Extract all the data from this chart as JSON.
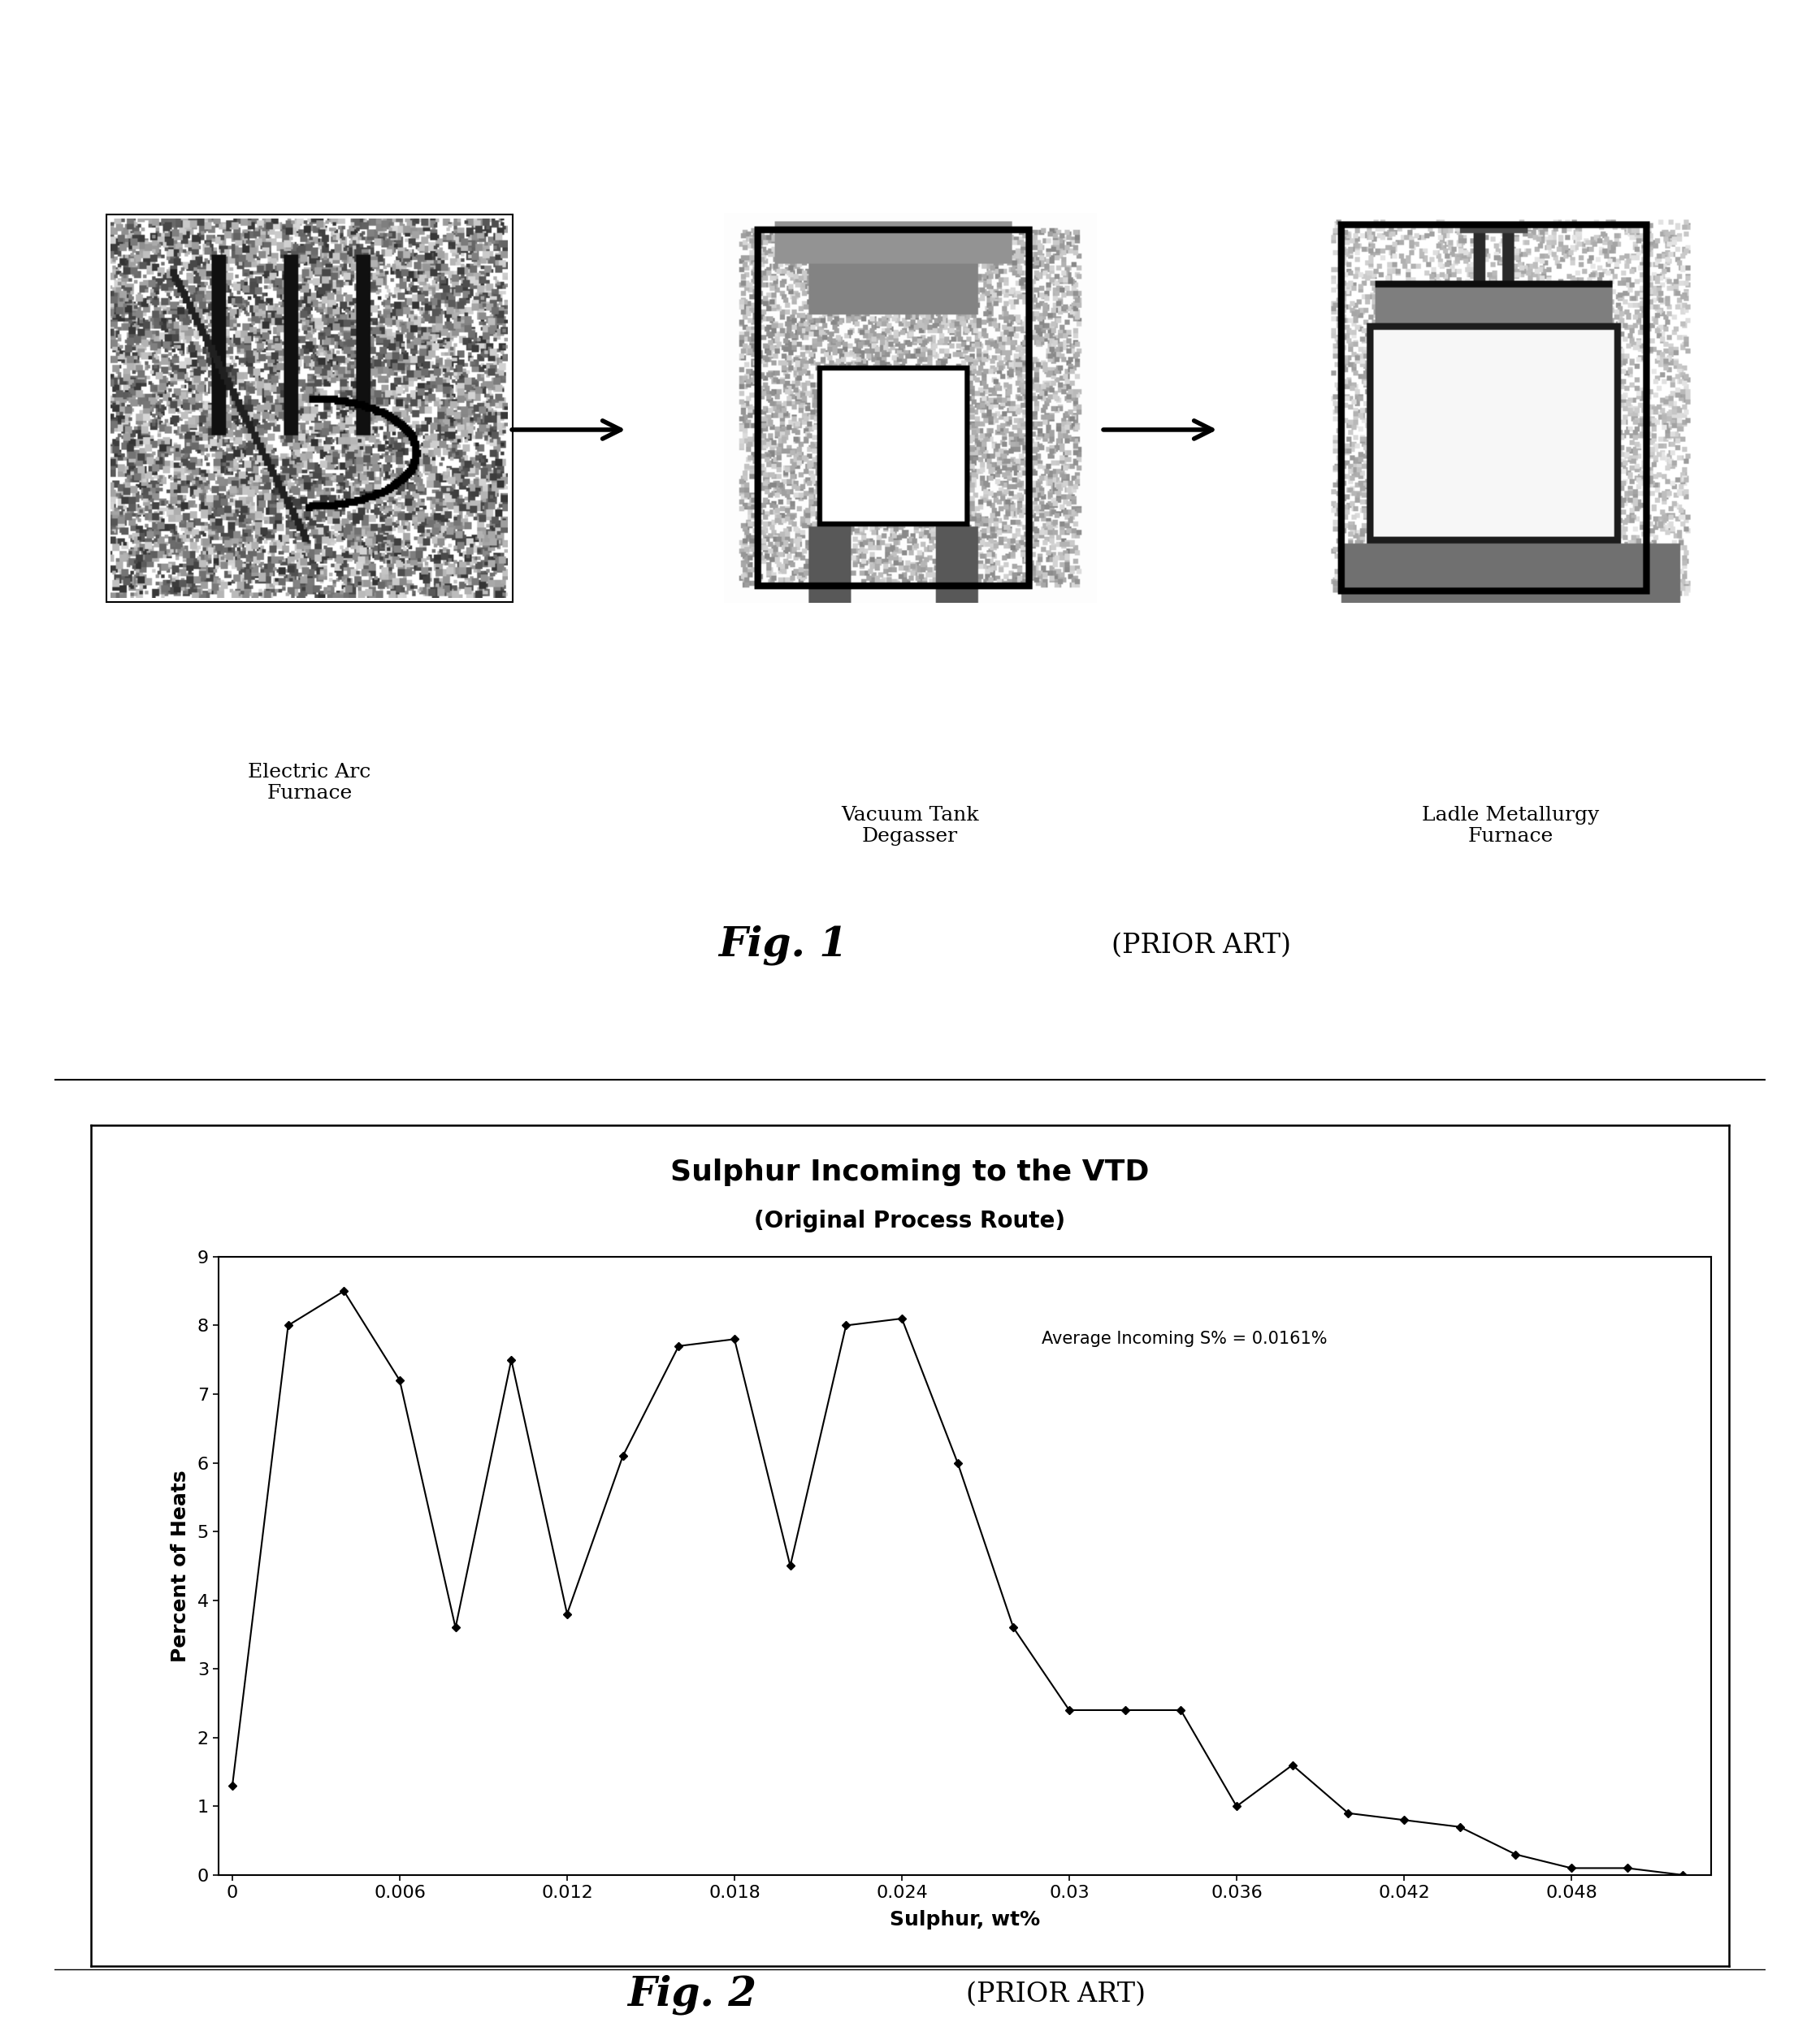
{
  "title1": "Sulphur Incoming to the VTD",
  "subtitle1": "(Original Process Route)",
  "xlabel": "Sulphur, wt%",
  "ylabel": "Percent of Heats",
  "annotation": "Average Incoming S% = 0.0161%",
  "fig1_label": "Fig. 1",
  "fig2_label": "Fig. 2",
  "prior_art_label": "(PRIOR ART)",
  "eaf_label": "Electric Arc\nFurnace",
  "vtd_label": "Vacuum Tank\nDegasser",
  "lmf_label": "Ladle Metallurgy\nFurnace",
  "x_data": [
    0.0,
    0.002,
    0.004,
    0.006,
    0.008,
    0.01,
    0.012,
    0.014,
    0.016,
    0.018,
    0.02,
    0.022,
    0.024,
    0.026,
    0.028,
    0.03,
    0.032,
    0.034,
    0.036,
    0.038,
    0.04,
    0.042,
    0.044,
    0.046,
    0.048,
    0.05,
    0.052
  ],
  "y_data": [
    1.3,
    8.0,
    8.5,
    7.2,
    3.6,
    7.5,
    3.8,
    6.1,
    7.7,
    7.8,
    4.5,
    8.0,
    8.1,
    6.0,
    3.6,
    2.4,
    2.4,
    2.4,
    1.0,
    1.6,
    0.9,
    0.8,
    0.7,
    0.3,
    0.1,
    0.1,
    0.0
  ],
  "x_ticks": [
    0,
    0.006,
    0.012,
    0.018,
    0.024,
    0.03,
    0.036,
    0.042,
    0.048
  ],
  "x_tick_labels": [
    "0",
    "0.006",
    "0.012",
    "0.018",
    "0.024",
    "0.03",
    "0.036",
    "0.042",
    "0.048"
  ],
  "y_ticks": [
    0,
    1,
    2,
    3,
    4,
    5,
    6,
    7,
    8,
    9
  ],
  "ylim": [
    0,
    9
  ],
  "xlim": [
    -0.0005,
    0.053
  ],
  "background_color": "#ffffff",
  "line_color": "#000000",
  "marker_color": "#000000",
  "title_fontsize": 26,
  "subtitle_fontsize": 20,
  "axis_label_fontsize": 18,
  "tick_fontsize": 16,
  "annotation_fontsize": 15,
  "equipment_label_fontsize": 18,
  "fig_label_fontsize": 36,
  "prior_art_fontsize": 24
}
